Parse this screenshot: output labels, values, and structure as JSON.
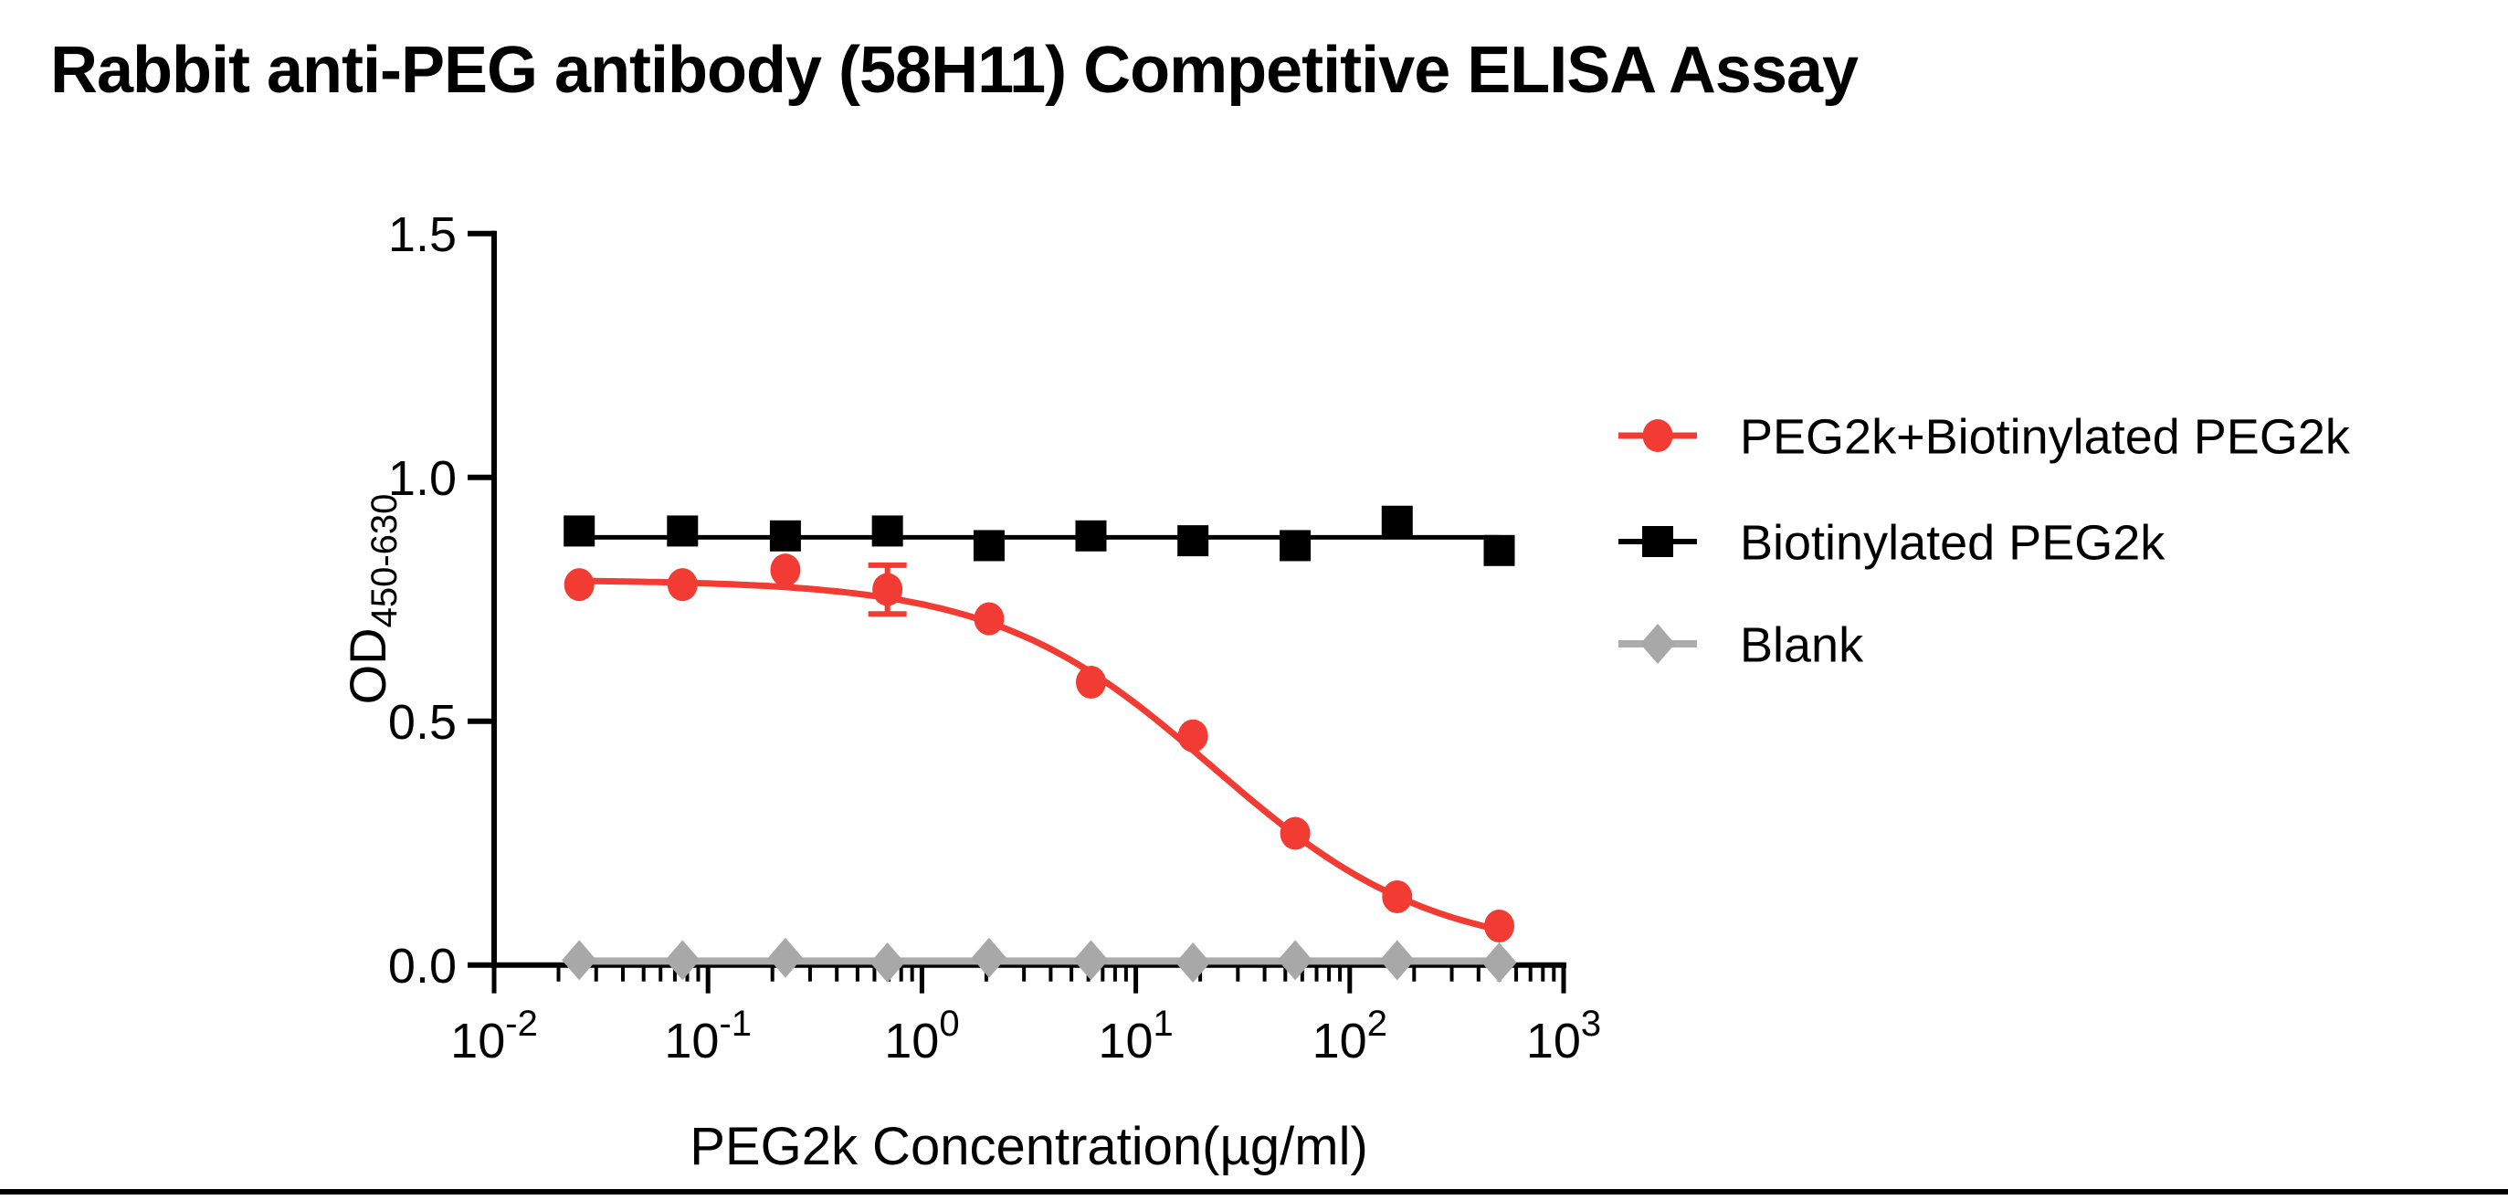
{
  "figure": {
    "background": "#FFFFFF",
    "bottom_border_color": "#000000"
  },
  "chart_data": {
    "type": "line-scatter",
    "title": "Rabbit anti-PEG antibody (58H11) Competitive ELISA Assay",
    "xlabel": "PEG2k Concentration(µg/ml)",
    "ylabel_main": "OD",
    "ylabel_sub": "450-630",
    "x_scale": "log10",
    "x_range_exponents": [
      -2,
      3
    ],
    "x_tick_exponents": [
      -2,
      -1,
      0,
      1,
      2,
      3
    ],
    "x_tick_base": "10",
    "ylim": [
      0,
      1.5
    ],
    "y_ticks": [
      0,
      0.5,
      1,
      1.5
    ],
    "y_tick_labels": [
      "0.0",
      "0.5",
      "1.0",
      "1.5"
    ],
    "grid": false,
    "legend_position": "right-outside",
    "concentrations_ug_ml": [
      0.025,
      0.076,
      0.23,
      0.69,
      2.06,
      6.17,
      18.5,
      55.6,
      166.7,
      500
    ],
    "series": [
      {
        "name": "PEG2k+Biotinylated PEG2k",
        "marker": "circle",
        "color": "#F13B33",
        "values": [
          0.78,
          0.78,
          0.81,
          0.77,
          0.71,
          0.58,
          0.47,
          0.27,
          0.14,
          0.08
        ],
        "error_bars": [
          0,
          0,
          0,
          0.05,
          0,
          0,
          0,
          0,
          0,
          0
        ],
        "fit_curve_4pl": {
          "top": 0.79,
          "bottom": 0.02,
          "ic50_ug_ml": 23,
          "hill": 0.85
        }
      },
      {
        "name": "Biotinylated PEG2k",
        "marker": "square",
        "color": "#000000",
        "values": [
          0.89,
          0.89,
          0.88,
          0.89,
          0.86,
          0.88,
          0.87,
          0.86,
          0.91,
          0.85
        ],
        "trend_line_level": 0.877
      },
      {
        "name": "Blank",
        "marker": "diamond",
        "color": "#A8A8A8",
        "line_color": "#ACACAC",
        "values": [
          0.01,
          0.01,
          0.015,
          0.005,
          0.015,
          0.01,
          0.005,
          0.01,
          0.01,
          0.005
        ],
        "trend_line_level": 0.008
      }
    ]
  }
}
